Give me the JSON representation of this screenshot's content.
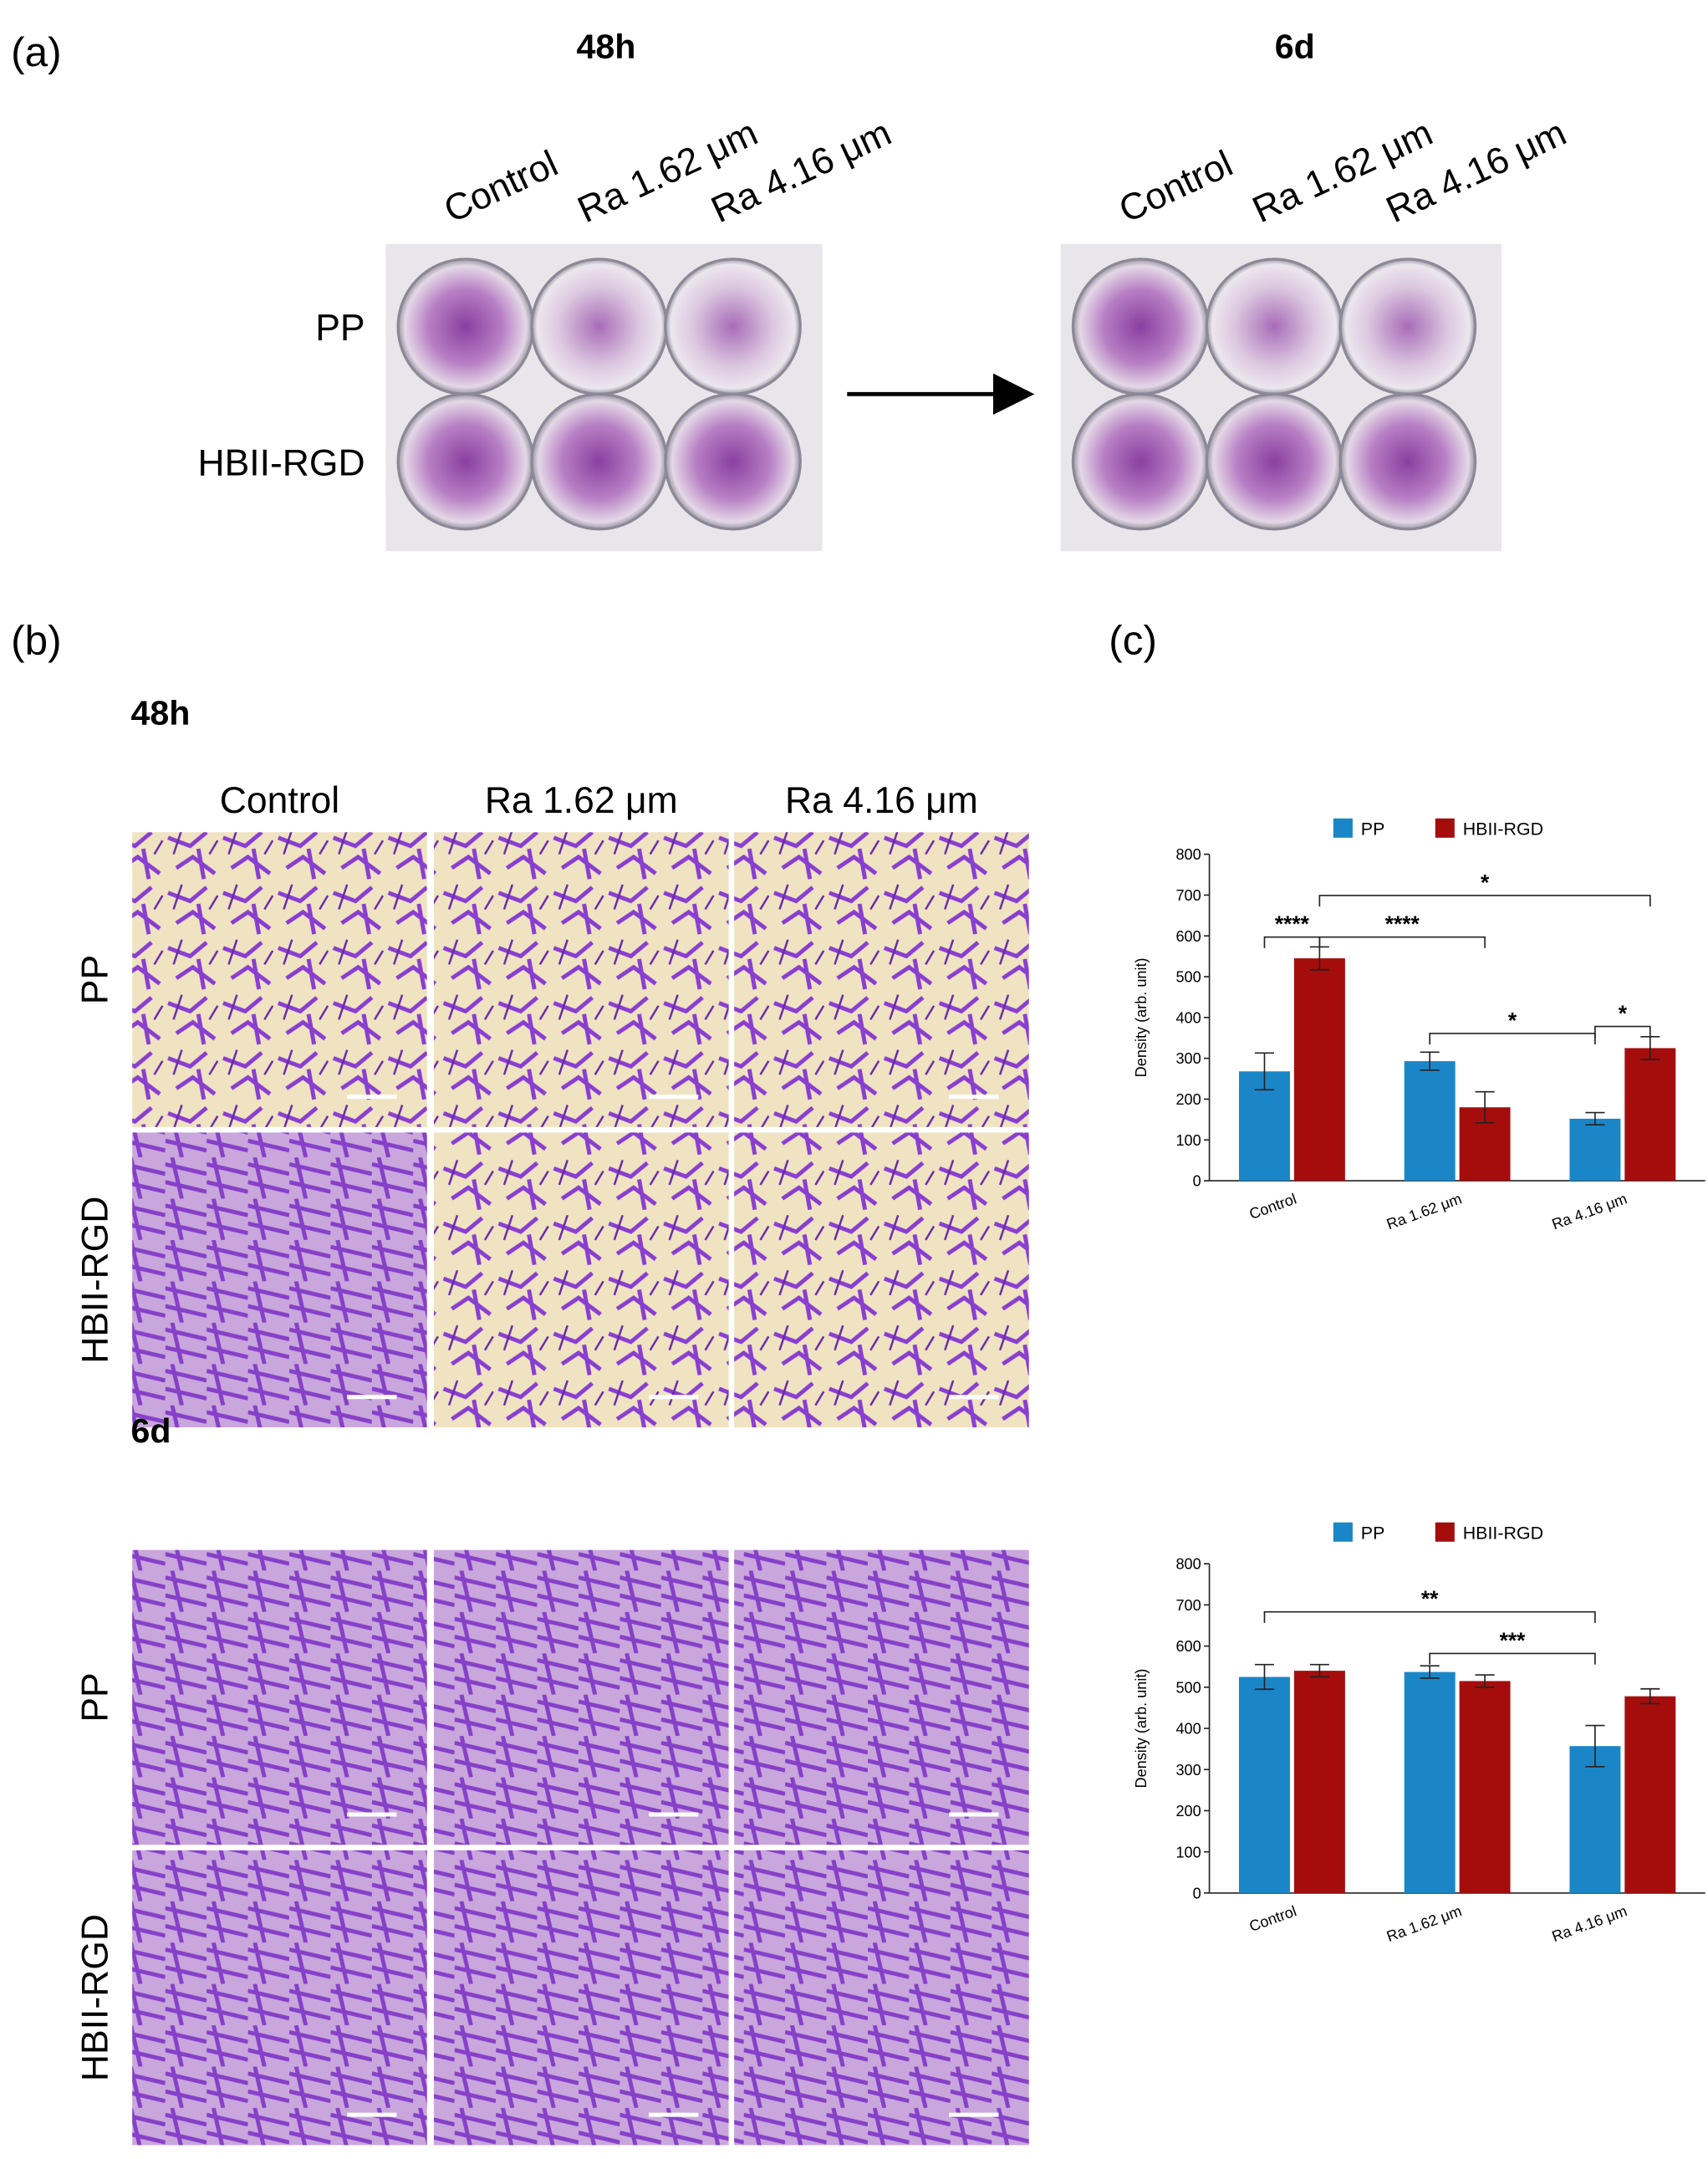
{
  "panel_a": {
    "label": "(a)",
    "times": [
      "48h",
      "6d"
    ],
    "columns": [
      "Control",
      "Ra 1.62 μm",
      "Ra 4.16 μm"
    ],
    "rows": [
      "PP",
      "HBII-RGD"
    ]
  },
  "panel_b": {
    "label": "(b)",
    "times": [
      "48h",
      "6d"
    ],
    "columns": [
      "Control",
      "Ra 1.62 μm",
      "Ra 4.16 μm"
    ],
    "rows": [
      "PP",
      "HBII-RGD"
    ]
  },
  "panel_c": {
    "label": "(c)"
  },
  "chart_data": [
    {
      "type": "bar",
      "ylabel": "Density (arb. unit)",
      "categories": [
        "Control",
        "Ra 1.62 μm",
        "Ra 4.16 μm"
      ],
      "series": [
        {
          "name": "PP",
          "color": "#1a86c8",
          "values": [
            268,
            293,
            152
          ],
          "errors": [
            45,
            22,
            15
          ]
        },
        {
          "name": "HBII-RGD",
          "color": "#a50d0d",
          "values": [
            545,
            180,
            325
          ],
          "errors": [
            28,
            38,
            28
          ]
        }
      ],
      "ylim": [
        0,
        800
      ],
      "yticks": [
        0,
        100,
        200,
        300,
        400,
        500,
        600,
        700,
        800
      ],
      "annotations": [
        {
          "label": "****"
        },
        {
          "label": "****"
        },
        {
          "label": "*"
        },
        {
          "label": "*"
        },
        {
          "label": "*"
        }
      ]
    },
    {
      "type": "bar",
      "ylabel": "Density (arb. unit)",
      "categories": [
        "Control",
        "Ra 1.62 μm",
        "Ra 4.16 μm"
      ],
      "series": [
        {
          "name": "PP",
          "color": "#1a86c8",
          "values": [
            525,
            537,
            357
          ],
          "errors": [
            30,
            15,
            50
          ]
        },
        {
          "name": "HBII-RGD",
          "color": "#a50d0d",
          "values": [
            540,
            515,
            478
          ],
          "errors": [
            15,
            15,
            18
          ]
        }
      ],
      "ylim": [
        0,
        800
      ],
      "yticks": [
        0,
        100,
        200,
        300,
        400,
        500,
        600,
        700,
        800
      ],
      "annotations": [
        {
          "label": "**"
        },
        {
          "label": "***"
        }
      ]
    }
  ]
}
